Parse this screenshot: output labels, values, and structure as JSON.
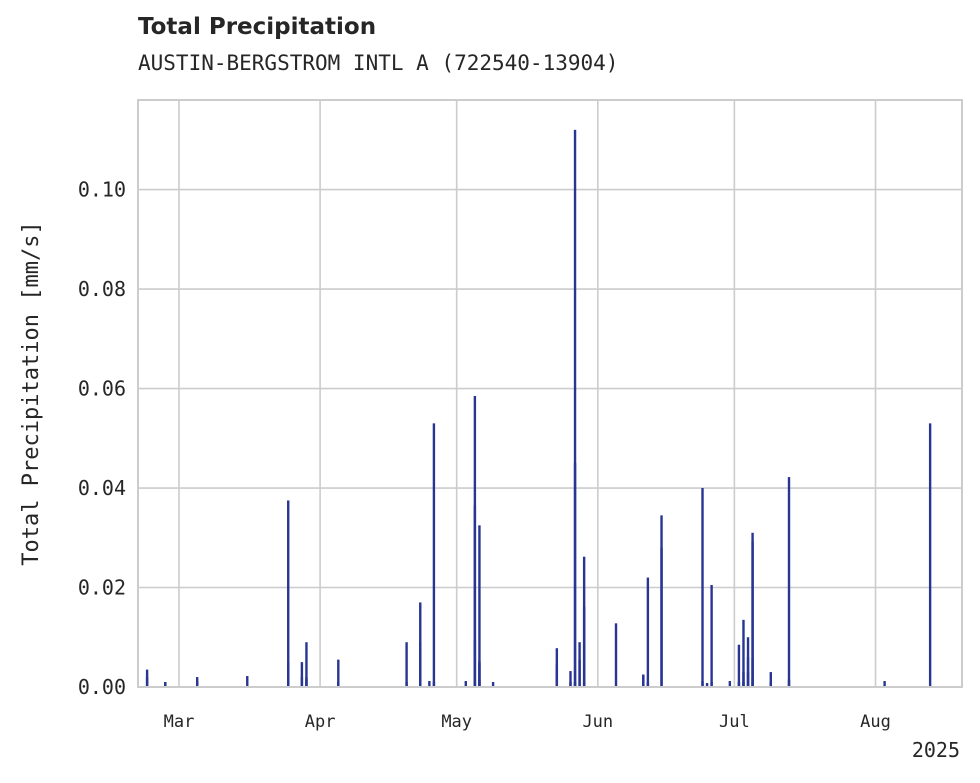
{
  "chart_data": {
    "type": "bar",
    "title": "Total Precipitation",
    "subtitle": "AUSTIN-BERGSTROM INTL A (722540-13904)",
    "xlabel": "",
    "ylabel": "Total Precipitation [mm/s]",
    "x_range": [
      "2025-02-20",
      "2025-08-20"
    ],
    "ylim": [
      0,
      0.118
    ],
    "y_ticks": [
      0.0,
      0.02,
      0.04,
      0.06,
      0.08,
      0.1
    ],
    "y_tick_labels": [
      "0.00",
      "0.02",
      "0.04",
      "0.06",
      "0.08",
      "0.10"
    ],
    "x_ticks": [
      {
        "date": "2025-03-01",
        "label": "Mar"
      },
      {
        "date": "2025-04-01",
        "label": "Apr"
      },
      {
        "date": "2025-05-01",
        "label": "May"
      },
      {
        "date": "2025-06-01",
        "label": "Jun"
      },
      {
        "date": "2025-07-01",
        "label": "Jul"
      },
      {
        "date": "2025-08-01",
        "label": "Aug"
      }
    ],
    "x_offset_label": "2025",
    "grid": true,
    "bar_color": "#283593",
    "series": [
      {
        "x": [
          "2025-02-22",
          "2025-02-22",
          "2025-02-26",
          "2025-02-26",
          "2025-03-05",
          "2025-03-05",
          "2025-03-16",
          "2025-03-25",
          "2025-03-25",
          "2025-03-28",
          "2025-03-28",
          "2025-03-29",
          "2025-03-29",
          "2025-03-29",
          "2025-04-05",
          "2025-04-05",
          "2025-04-20",
          "2025-04-20",
          "2025-04-23",
          "2025-04-23",
          "2025-04-25",
          "2025-04-26",
          "2025-04-26",
          "2025-05-03",
          "2025-05-05",
          "2025-05-05",
          "2025-05-05",
          "2025-05-05",
          "2025-05-06",
          "2025-05-06",
          "2025-05-06",
          "2025-05-06",
          "2025-05-09",
          "2025-05-23",
          "2025-05-23",
          "2025-05-26",
          "2025-05-26",
          "2025-05-27",
          "2025-05-27",
          "2025-05-27",
          "2025-05-28",
          "2025-05-28",
          "2025-05-29",
          "2025-05-29",
          "2025-05-29",
          "2025-06-05",
          "2025-06-11",
          "2025-06-11",
          "2025-06-12",
          "2025-06-12",
          "2025-06-15",
          "2025-06-15",
          "2025-06-24",
          "2025-06-24",
          "2025-06-25",
          "2025-06-26",
          "2025-06-26",
          "2025-06-30",
          "2025-07-02",
          "2025-07-02",
          "2025-07-03",
          "2025-07-03",
          "2025-07-03",
          "2025-07-04",
          "2025-07-04",
          "2025-07-04",
          "2025-07-05",
          "2025-07-05",
          "2025-07-05",
          "2025-07-05",
          "2025-07-09",
          "2025-07-09",
          "2025-07-13",
          "2025-07-13",
          "2025-08-03",
          "2025-08-13"
        ],
        "values": [
          0.002,
          0.0035,
          0.001,
          0.001,
          0.002,
          0.0012,
          0.0022,
          0.0375,
          0.005,
          0.005,
          0.002,
          0.009,
          0.002,
          0.0015,
          0.0055,
          0.001,
          0.009,
          0.001,
          0.009,
          0.017,
          0.0012,
          0.053,
          0.001,
          0.0012,
          0.001,
          0.0365,
          0.0585,
          0.0095,
          0.0325,
          0.0052,
          0.0048,
          0.0015,
          0.001,
          0.0078,
          0.0045,
          0.001,
          0.0032,
          0.112,
          0.045,
          0.001,
          0.0055,
          0.009,
          0.0162,
          0.0262,
          0.001,
          0.0128,
          0.0025,
          0.0025,
          0.022,
          0.001,
          0.0345,
          0.028,
          0.04,
          0.0012,
          0.0008,
          0.0205,
          0.001,
          0.0012,
          0.0085,
          0.001,
          0.0135,
          0.001,
          0.003,
          0.01,
          0.003,
          0.006,
          0.031,
          0.0292,
          0.0018,
          0.0058,
          0.003,
          0.001,
          0.0422,
          0.0015,
          0.0012,
          0.053
        ]
      }
    ]
  }
}
